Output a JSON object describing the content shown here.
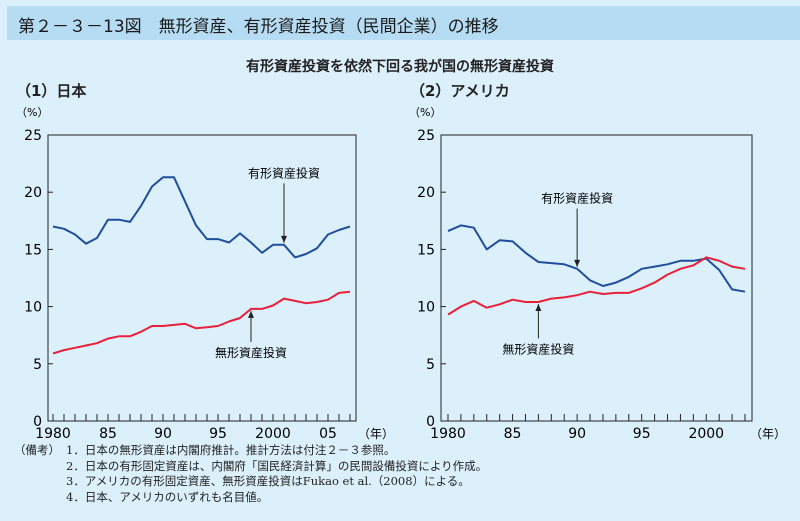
{
  "header": {
    "title": "第２－３－13図　無形資産、有形資産投資（民間企業）の推移"
  },
  "subtitle": "有形資産投資を依然下回る我が国の無形資産投資",
  "notes": {
    "label": "（備考）",
    "items": [
      "1．日本の無形資産は内閣府推計。推計方法は付注２－３参照。",
      "2．日本の有形固定資産は、内閣府「国民経済計算」の民間設備投資により作成。",
      "3．アメリカの有形固定資産、無形資産投資はFukao et al.（2008）による。",
      "4．日本、アメリカのいずれも名目値。"
    ]
  },
  "colors": {
    "tangible": "#1f4e9c",
    "intangible": "#e8203a"
  },
  "chart_data": [
    {
      "type": "line",
      "title": "（1）日本",
      "ylabel": "（%）",
      "xunit": "（年）",
      "ylim": [
        0,
        25
      ],
      "yticks": [
        "0",
        "5",
        "10",
        "15",
        "20",
        "25"
      ],
      "xlim": [
        1980,
        2007
      ],
      "xticks": [
        {
          "year": 1980,
          "label": "1980"
        },
        {
          "year": 1985,
          "label": "85"
        },
        {
          "year": 1990,
          "label": "90"
        },
        {
          "year": 1995,
          "label": "95"
        },
        {
          "year": 2000,
          "label": "2000"
        },
        {
          "year": 2005,
          "label": "05"
        }
      ],
      "x": [
        1980,
        1981,
        1982,
        1983,
        1984,
        1985,
        1986,
        1987,
        1988,
        1989,
        1990,
        1991,
        1992,
        1993,
        1994,
        1995,
        1996,
        1997,
        1998,
        1999,
        2000,
        2001,
        2002,
        2003,
        2004,
        2005,
        2006,
        2007
      ],
      "series": [
        {
          "name": "有形資産投資",
          "key": "tangible",
          "values": [
            17.0,
            16.8,
            16.3,
            15.5,
            16.0,
            17.6,
            17.6,
            17.4,
            18.8,
            20.5,
            21.3,
            21.3,
            19.2,
            17.1,
            15.9,
            15.9,
            15.6,
            16.4,
            15.6,
            14.7,
            15.4,
            15.4,
            14.3,
            14.6,
            15.1,
            16.3,
            16.7,
            17.0
          ],
          "annotation_year": 2001,
          "label_y": 21.3
        },
        {
          "name": "無形資産投資",
          "key": "intangible",
          "values": [
            5.9,
            6.2,
            6.4,
            6.6,
            6.8,
            7.2,
            7.4,
            7.4,
            7.8,
            8.3,
            8.3,
            8.4,
            8.5,
            8.1,
            8.2,
            8.3,
            8.7,
            9.0,
            9.8,
            9.8,
            10.1,
            10.7,
            10.5,
            10.3,
            10.4,
            10.6,
            11.2,
            11.3
          ],
          "annotation_year": 1998,
          "label_y": 5.6
        }
      ]
    },
    {
      "type": "line",
      "title": "（2）アメリカ",
      "ylabel": "（%）",
      "xunit": "（年）",
      "ylim": [
        0,
        25
      ],
      "yticks": [
        "0",
        "5",
        "10",
        "15",
        "20",
        "25"
      ],
      "xlim": [
        1980,
        2003
      ],
      "xticks": [
        {
          "year": 1980,
          "label": "1980"
        },
        {
          "year": 1985,
          "label": "85"
        },
        {
          "year": 1990,
          "label": "90"
        },
        {
          "year": 1995,
          "label": "95"
        },
        {
          "year": 2000,
          "label": "2000"
        }
      ],
      "x": [
        1980,
        1981,
        1982,
        1983,
        1984,
        1985,
        1986,
        1987,
        1988,
        1989,
        1990,
        1991,
        1992,
        1993,
        1994,
        1995,
        1996,
        1997,
        1998,
        1999,
        2000,
        2001,
        2002,
        2003
      ],
      "series": [
        {
          "name": "有形資産投資",
          "key": "tangible",
          "values": [
            16.6,
            17.1,
            16.9,
            15.0,
            15.8,
            15.7,
            14.7,
            13.9,
            13.8,
            13.7,
            13.3,
            12.3,
            11.8,
            12.1,
            12.6,
            13.3,
            13.5,
            13.7,
            14.0,
            14.0,
            14.2,
            13.2,
            11.5,
            11.3
          ],
          "annotation_year": 1990,
          "label_y": 19.1
        },
        {
          "name": "無形資産投資",
          "key": "intangible",
          "values": [
            9.3,
            10.0,
            10.5,
            9.9,
            10.2,
            10.6,
            10.4,
            10.4,
            10.7,
            10.8,
            11.0,
            11.3,
            11.1,
            11.2,
            11.2,
            11.6,
            12.1,
            12.8,
            13.3,
            13.6,
            14.3,
            14.0,
            13.5,
            13.3
          ],
          "annotation_year": 1987,
          "label_y": 5.9
        }
      ]
    }
  ]
}
